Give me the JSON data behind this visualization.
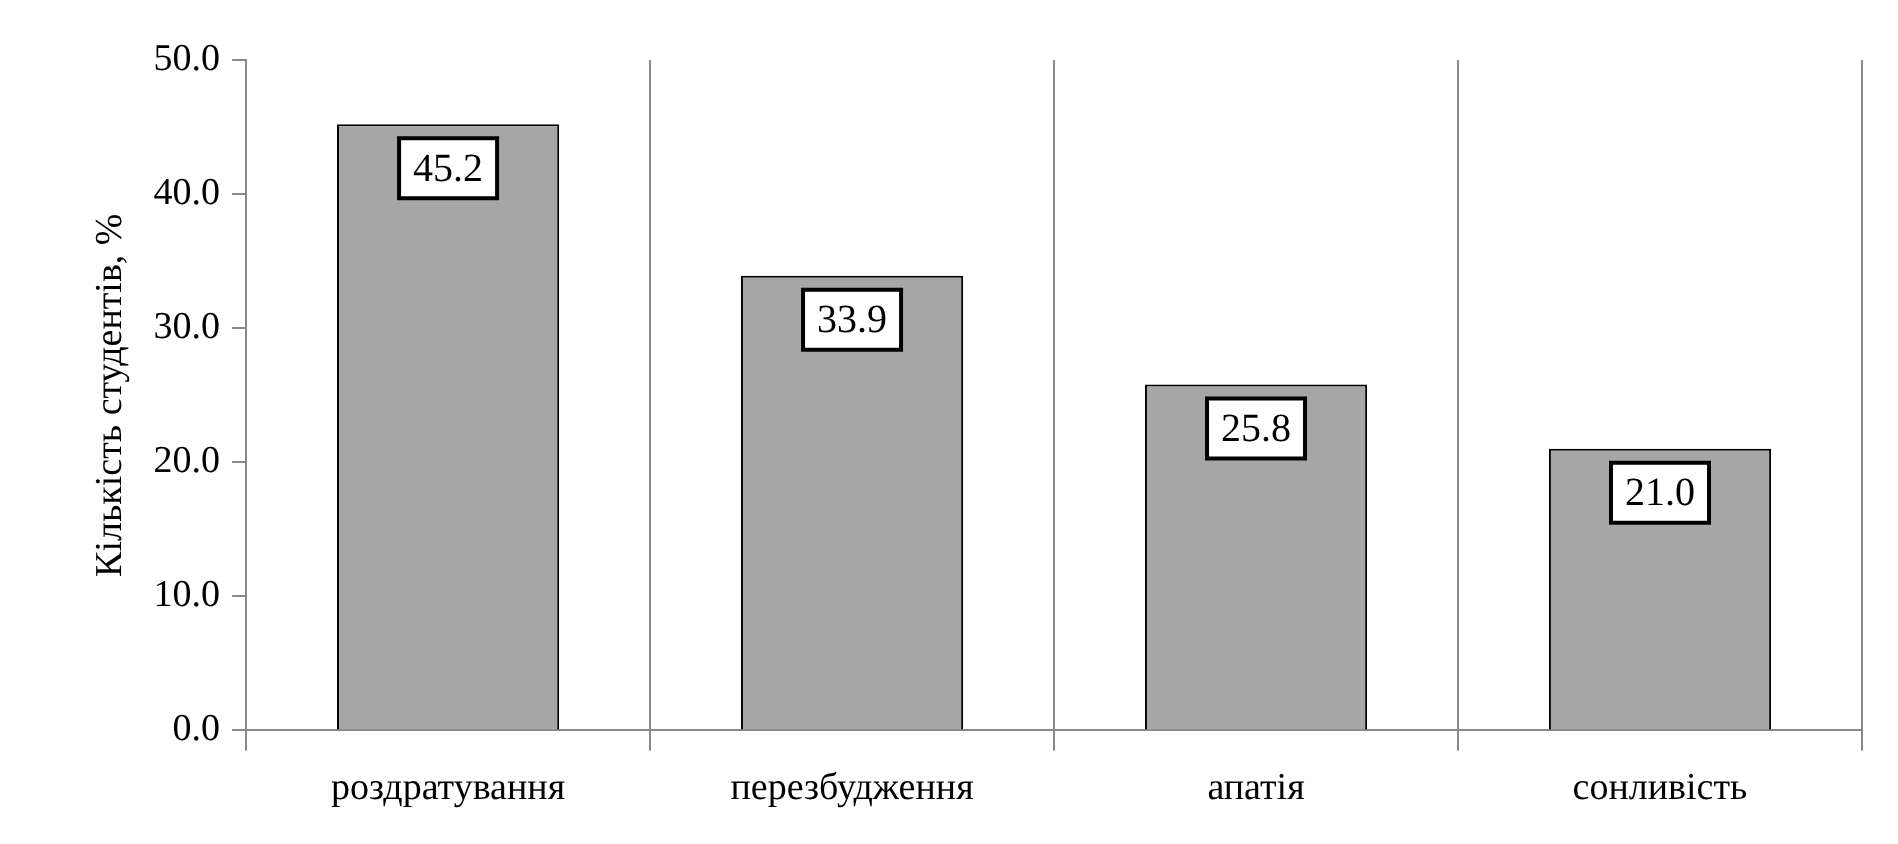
{
  "chart_data": {
    "type": "bar",
    "ylabel": "Кількість студентів, %",
    "categories": [
      "роздратування",
      "перезбудження",
      "апатія",
      "сонливість"
    ],
    "values": [
      45.2,
      33.9,
      25.8,
      21.0
    ],
    "value_labels": [
      "45.2",
      "33.9",
      "25.8",
      "21.0"
    ],
    "color": "#a6a6a6",
    "ylim": [
      0,
      50
    ],
    "yticks": [
      {
        "value": 0,
        "label": "0.0"
      },
      {
        "value": 10,
        "label": "10.0"
      },
      {
        "value": 20,
        "label": "20.0"
      },
      {
        "value": 30,
        "label": "30.0"
      },
      {
        "value": 40,
        "label": "40.0"
      },
      {
        "value": 50,
        "label": "50.0"
      }
    ],
    "grid": "x",
    "legend": false
  }
}
